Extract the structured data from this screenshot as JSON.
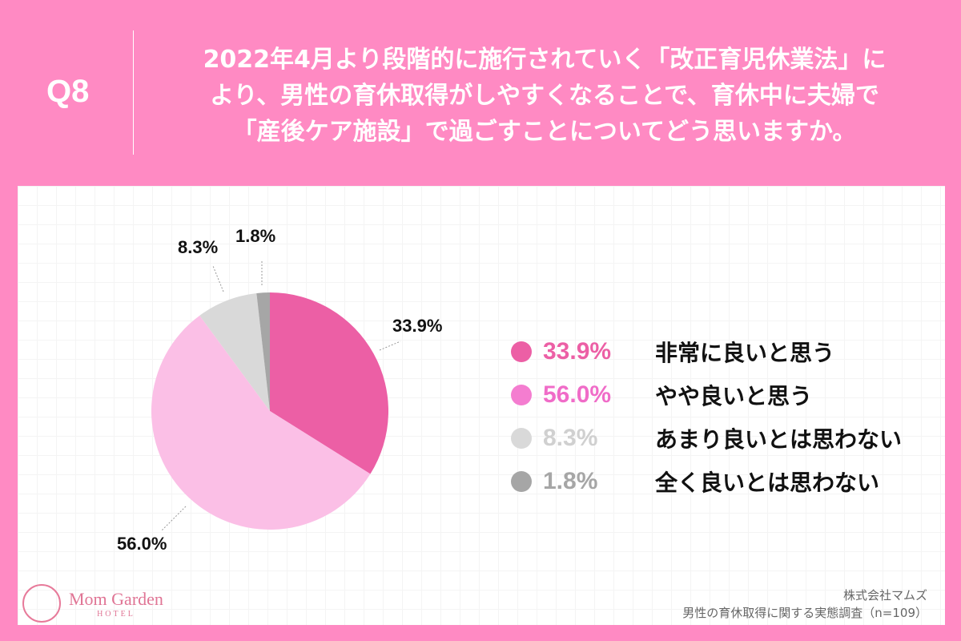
{
  "header": {
    "question_number": "Q8",
    "question_line1": "2022年4月より段階的に施行されていく「改正育児休業法」に",
    "question_line2": "より、男性の育休取得がしやすくなることで、育休中に夫婦で",
    "question_line3": "「産後ケア施設」で過ごすことについてどう思いますか。"
  },
  "legend": [
    {
      "pct": "33.9%",
      "label": "非常に良いと思う",
      "color": "#ec5fa5",
      "pct_color": "#ec5fa5"
    },
    {
      "pct": "56.0%",
      "label": "やや良いと思う",
      "color": "#f47dd0",
      "pct_color": "#f06cc8"
    },
    {
      "pct": "8.3%",
      "label": "あまり良いとは思わない",
      "color": "#d9d9d9",
      "pct_color": "#d0d0d0"
    },
    {
      "pct": "1.8%",
      "label": "全く良いとは思わない",
      "color": "#a6a6a6",
      "pct_color": "#a6a6a6"
    }
  ],
  "pie_labels": {
    "a": "33.9%",
    "b": "56.0%",
    "c": "8.3%",
    "d": "1.8%"
  },
  "footer": {
    "brand": "Mom Garden",
    "brand_sub": "HOTEL",
    "company": "株式会社マムズ",
    "survey": "男性の育休取得に関する実態調査（n=109）"
  },
  "chart_data": {
    "type": "pie",
    "title": "2022年4月より段階的に施行されていく「改正育児休業法」により、男性の育休取得がしやすくなることで、育休中に夫婦で「産後ケア施設」で過ごすことについてどう思いますか。",
    "categories": [
      "非常に良いと思う",
      "やや良いと思う",
      "あまり良いとは思わない",
      "全く良いとは思わない"
    ],
    "values": [
      33.9,
      56.0,
      8.3,
      1.8
    ],
    "colors": [
      "#ec5fa5",
      "#fbbfe6",
      "#d9d9d9",
      "#a6a6a6"
    ],
    "legend_position": "right",
    "n": 109
  }
}
